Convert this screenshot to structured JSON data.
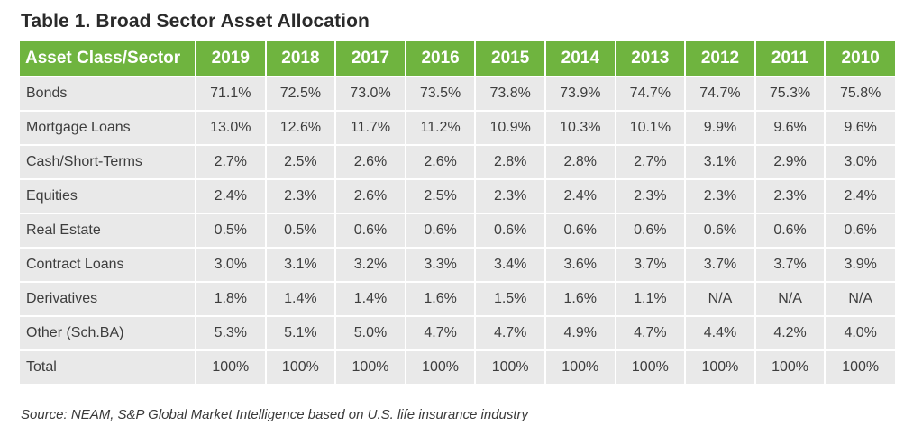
{
  "title": "Table 1. Broad Sector Asset Allocation",
  "table": {
    "header": [
      "Asset Class/Sector",
      "2019",
      "2018",
      "2017",
      "2016",
      "2015",
      "2014",
      "2013",
      "2012",
      "2011",
      "2010"
    ],
    "rows": [
      [
        "Bonds",
        "71.1%",
        "72.5%",
        "73.0%",
        "73.5%",
        "73.8%",
        "73.9%",
        "74.7%",
        "74.7%",
        "75.3%",
        "75.8%"
      ],
      [
        "Mortgage Loans",
        "13.0%",
        "12.6%",
        "11.7%",
        "11.2%",
        "10.9%",
        "10.3%",
        "10.1%",
        "9.9%",
        "9.6%",
        "9.6%"
      ],
      [
        "Cash/Short-Terms",
        "2.7%",
        "2.5%",
        "2.6%",
        "2.6%",
        "2.8%",
        "2.8%",
        "2.7%",
        "3.1%",
        "2.9%",
        "3.0%"
      ],
      [
        "Equities",
        "2.4%",
        "2.3%",
        "2.6%",
        "2.5%",
        "2.3%",
        "2.4%",
        "2.3%",
        "2.3%",
        "2.3%",
        "2.4%"
      ],
      [
        "Real Estate",
        "0.5%",
        "0.5%",
        "0.6%",
        "0.6%",
        "0.6%",
        "0.6%",
        "0.6%",
        "0.6%",
        "0.6%",
        "0.6%"
      ],
      [
        "Contract Loans",
        "3.0%",
        "3.1%",
        "3.2%",
        "3.3%",
        "3.4%",
        "3.6%",
        "3.7%",
        "3.7%",
        "3.7%",
        "3.9%"
      ],
      [
        "Derivatives",
        "1.8%",
        "1.4%",
        "1.4%",
        "1.6%",
        "1.5%",
        "1.6%",
        "1.1%",
        "N/A",
        "N/A",
        "N/A"
      ],
      [
        "Other (Sch.BA)",
        "5.3%",
        "5.1%",
        "5.0%",
        "4.7%",
        "4.7%",
        "4.9%",
        "4.7%",
        "4.4%",
        "4.2%",
        "4.0%"
      ],
      [
        "Total",
        "100%",
        "100%",
        "100%",
        "100%",
        "100%",
        "100%",
        "100%",
        "100%",
        "100%",
        "100%"
      ]
    ]
  },
  "source": "Source: NEAM, S&P Global Market Intelligence based on U.S. life insurance industry",
  "colors": {
    "header_bg": "#6fb43f",
    "cell_bg": "#e9e9e9"
  }
}
